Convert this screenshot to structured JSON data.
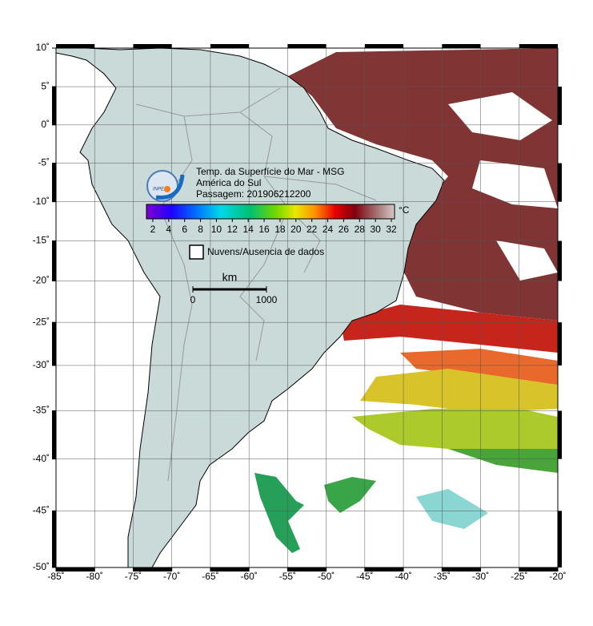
{
  "map": {
    "xlim": [
      -85,
      -20
    ],
    "ylim": [
      -50,
      10
    ],
    "xticks": [
      {
        "value": -85,
        "label": "-85˚"
      },
      {
        "value": -80,
        "label": "-80˚"
      },
      {
        "value": -75,
        "label": "-75˚"
      },
      {
        "value": -70,
        "label": "-70˚"
      },
      {
        "value": -65,
        "label": "-65˚"
      },
      {
        "value": -60,
        "label": "-60˚"
      },
      {
        "value": -55,
        "label": "-55˚"
      },
      {
        "value": -50,
        "label": "-50˚"
      },
      {
        "value": -45,
        "label": "-45˚"
      },
      {
        "value": -40,
        "label": "-40˚"
      },
      {
        "value": -35,
        "label": "-35˚"
      },
      {
        "value": -30,
        "label": "-30˚"
      },
      {
        "value": -25,
        "label": "-25˚"
      },
      {
        "value": -20,
        "label": "-20˚"
      }
    ],
    "yticks": [
      {
        "value": 10,
        "label": "10˚"
      },
      {
        "value": 5,
        "label": "5˚"
      },
      {
        "value": 0,
        "label": "0˚"
      },
      {
        "value": -5,
        "label": "-5˚"
      },
      {
        "value": -10,
        "label": "-10˚"
      },
      {
        "value": -15,
        "label": "-15˚"
      },
      {
        "value": -20,
        "label": "-20˚"
      },
      {
        "value": -25,
        "label": "-25˚"
      },
      {
        "value": -30,
        "label": "-30˚"
      },
      {
        "value": -35,
        "label": "-35˚"
      },
      {
        "value": -40,
        "label": "-40˚"
      },
      {
        "value": -45,
        "label": "-45˚"
      },
      {
        "value": -50,
        "label": "-50˚"
      }
    ],
    "grid": true
  },
  "legend": {
    "logo": "INPE",
    "title": "Temp. da Superfície do Mar - MSG",
    "region": "América do Sul",
    "pass": "Passagem: 201906212200",
    "colorbar": {
      "lim": [
        1.2,
        32.4
      ],
      "ticks": [
        2,
        4,
        6,
        8,
        10,
        12,
        14,
        16,
        18,
        20,
        22,
        24,
        26,
        28,
        30,
        32
      ],
      "unit": "°C"
    },
    "no_data": "Nuvens/Ausencia de dados",
    "scale": {
      "unit": "km",
      "ticks": [
        0,
        1000
      ]
    }
  }
}
